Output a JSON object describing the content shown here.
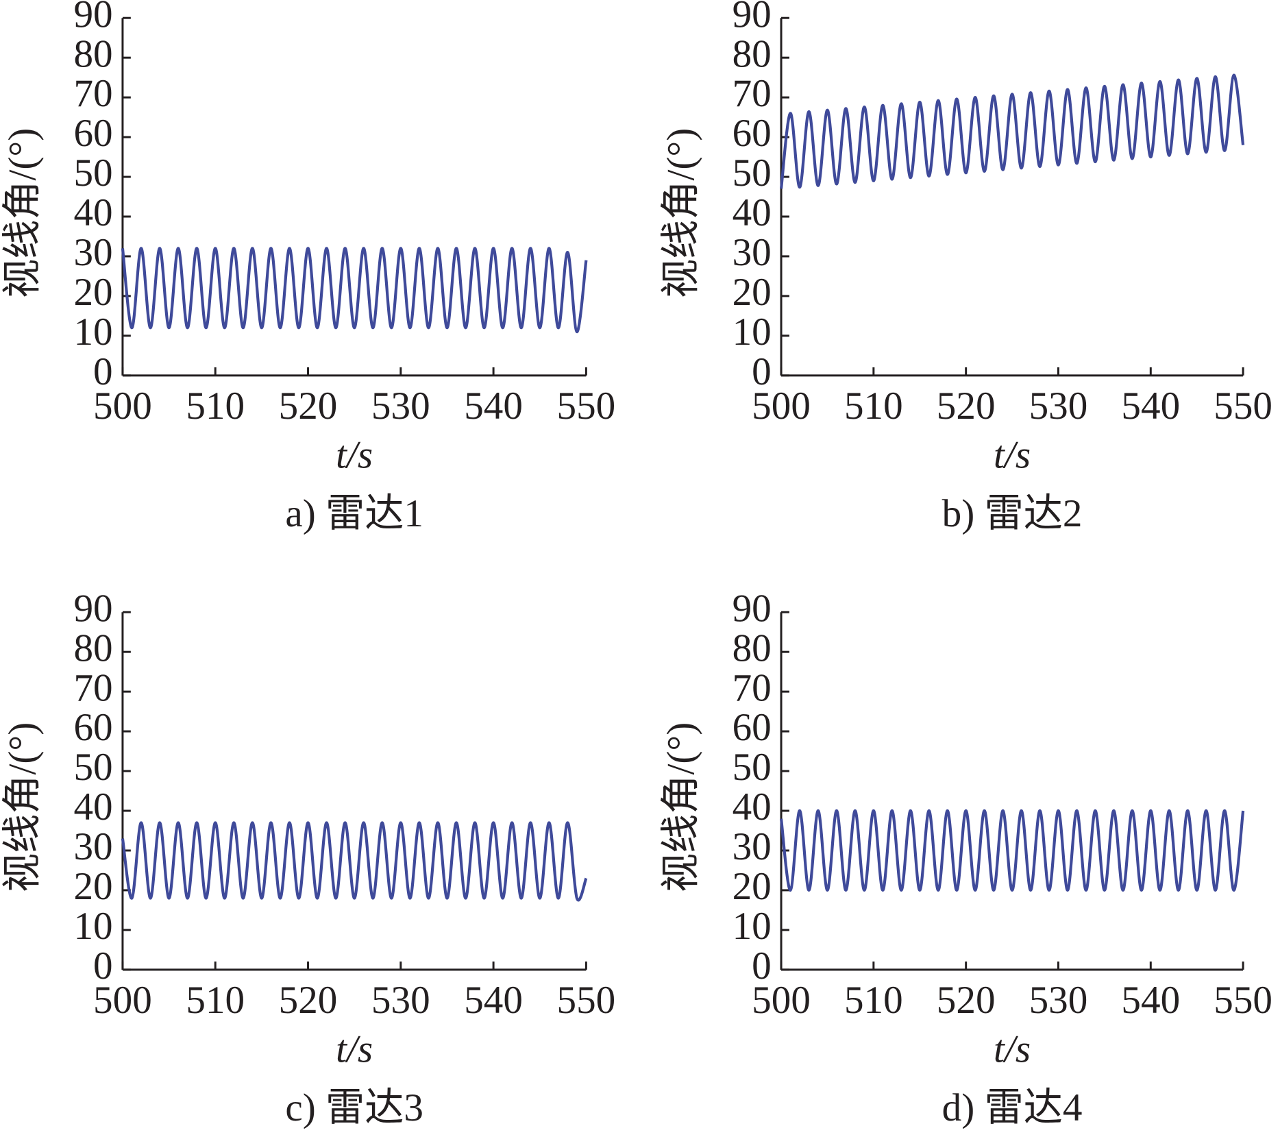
{
  "chart_data": [
    {
      "type": "line",
      "caption": "a) 雷达1",
      "x_label": "t/s",
      "y_label": "视线角/(°)",
      "color": "#3f4a9a",
      "x": [
        500,
        501,
        502,
        503,
        504,
        505,
        506,
        507,
        508,
        509,
        510,
        511,
        512,
        513,
        514,
        515,
        516,
        517,
        518,
        519,
        520,
        521,
        522,
        523,
        524,
        525,
        526,
        527,
        528,
        529,
        530,
        531,
        532,
        533,
        534,
        535,
        536,
        537,
        538,
        539,
        540,
        541,
        542,
        543,
        544,
        545,
        546,
        547,
        548,
        549,
        550
      ],
      "values": [
        32,
        12,
        32,
        12,
        32,
        12,
        32,
        12,
        32,
        12,
        32,
        12,
        32,
        12,
        32,
        12,
        32,
        12,
        32,
        12,
        32,
        12,
        32,
        12,
        32,
        12,
        32,
        12,
        32,
        12,
        32,
        12,
        32,
        12,
        32,
        12,
        32,
        12,
        32,
        12,
        32,
        12,
        32,
        12,
        32,
        12,
        32,
        12,
        31,
        11,
        29
      ],
      "xlim": [
        500,
        550
      ],
      "ylim": [
        0,
        90
      ],
      "xticks": [
        500,
        510,
        520,
        530,
        540,
        550
      ],
      "yticks": [
        0,
        10,
        20,
        30,
        40,
        50,
        60,
        70,
        80,
        90
      ]
    },
    {
      "type": "line",
      "caption": "b) 雷达2",
      "x_label": "t/s",
      "y_label": "视线角/(°)",
      "color": "#3f4a9a",
      "x": [
        500,
        501,
        502,
        503,
        504,
        505,
        506,
        507,
        508,
        509,
        510,
        511,
        512,
        513,
        514,
        515,
        516,
        517,
        518,
        519,
        520,
        521,
        522,
        523,
        524,
        525,
        526,
        527,
        528,
        529,
        530,
        531,
        532,
        533,
        534,
        535,
        536,
        537,
        538,
        539,
        540,
        541,
        542,
        543,
        544,
        545,
        546,
        547,
        548,
        549,
        550
      ],
      "values": [
        47,
        66,
        47.4,
        66.4,
        47.8,
        66.8,
        48.2,
        67.2,
        48.6,
        67.6,
        49,
        68,
        49.4,
        68.4,
        49.8,
        68.8,
        50.2,
        69.2,
        50.6,
        69.6,
        51,
        70,
        51.4,
        70.4,
        51.8,
        70.8,
        52.2,
        71.2,
        52.6,
        71.6,
        53,
        72,
        53.4,
        72.4,
        53.8,
        72.8,
        54.2,
        73.2,
        54.6,
        73.6,
        55,
        74,
        55.4,
        74.4,
        55.8,
        74.8,
        56.2,
        75.2,
        56.6,
        75.6,
        58
      ],
      "xlim": [
        500,
        550
      ],
      "ylim": [
        0,
        90
      ],
      "xticks": [
        500,
        510,
        520,
        530,
        540,
        550
      ],
      "yticks": [
        0,
        10,
        20,
        30,
        40,
        50,
        60,
        70,
        80,
        90
      ]
    },
    {
      "type": "line",
      "caption": "c) 雷达3",
      "x_label": "t/s",
      "y_label": "视线角/(°)",
      "color": "#3f4a9a",
      "x": [
        500,
        501,
        502,
        503,
        504,
        505,
        506,
        507,
        508,
        509,
        510,
        511,
        512,
        513,
        514,
        515,
        516,
        517,
        518,
        519,
        520,
        521,
        522,
        523,
        524,
        525,
        526,
        527,
        528,
        529,
        530,
        531,
        532,
        533,
        534,
        535,
        536,
        537,
        538,
        539,
        540,
        541,
        542,
        543,
        544,
        545,
        546,
        547,
        548,
        549,
        550
      ],
      "values": [
        33,
        18,
        37,
        18,
        37,
        18,
        37,
        18,
        37,
        18,
        37,
        18,
        37,
        18,
        37,
        18,
        37,
        18,
        37,
        18,
        37,
        18,
        37,
        18,
        37,
        18,
        37,
        18,
        37,
        18,
        37,
        18,
        37,
        18,
        37,
        18,
        37,
        18,
        37,
        18,
        37,
        18,
        37,
        18,
        37,
        18,
        37,
        18,
        37,
        18,
        23
      ],
      "xlim": [
        500,
        550
      ],
      "ylim": [
        0,
        90
      ],
      "xticks": [
        500,
        510,
        520,
        530,
        540,
        550
      ],
      "yticks": [
        0,
        10,
        20,
        30,
        40,
        50,
        60,
        70,
        80,
        90
      ]
    },
    {
      "type": "line",
      "caption": "d) 雷达4",
      "x_label": "t/s",
      "y_label": "视线角/(°)",
      "color": "#3f4a9a",
      "x": [
        500,
        501,
        502,
        503,
        504,
        505,
        506,
        507,
        508,
        509,
        510,
        511,
        512,
        513,
        514,
        515,
        516,
        517,
        518,
        519,
        520,
        521,
        522,
        523,
        524,
        525,
        526,
        527,
        528,
        529,
        530,
        531,
        532,
        533,
        534,
        535,
        536,
        537,
        538,
        539,
        540,
        541,
        542,
        543,
        544,
        545,
        546,
        547,
        548,
        549,
        550
      ],
      "values": [
        38,
        20,
        40,
        20,
        40,
        20,
        40,
        20,
        40,
        20,
        40,
        20,
        40,
        20,
        40,
        20,
        40,
        20,
        40,
        20,
        40,
        20,
        40,
        20,
        40,
        20,
        40,
        20,
        40,
        20,
        40,
        20,
        40,
        20,
        40,
        20,
        40,
        20,
        40,
        20,
        40,
        20,
        40,
        20,
        40,
        20,
        40,
        20,
        40,
        20,
        40
      ],
      "xlim": [
        500,
        550
      ],
      "ylim": [
        0,
        90
      ],
      "xticks": [
        500,
        510,
        520,
        530,
        540,
        550
      ],
      "yticks": [
        0,
        10,
        20,
        30,
        40,
        50,
        60,
        70,
        80,
        90
      ]
    }
  ]
}
